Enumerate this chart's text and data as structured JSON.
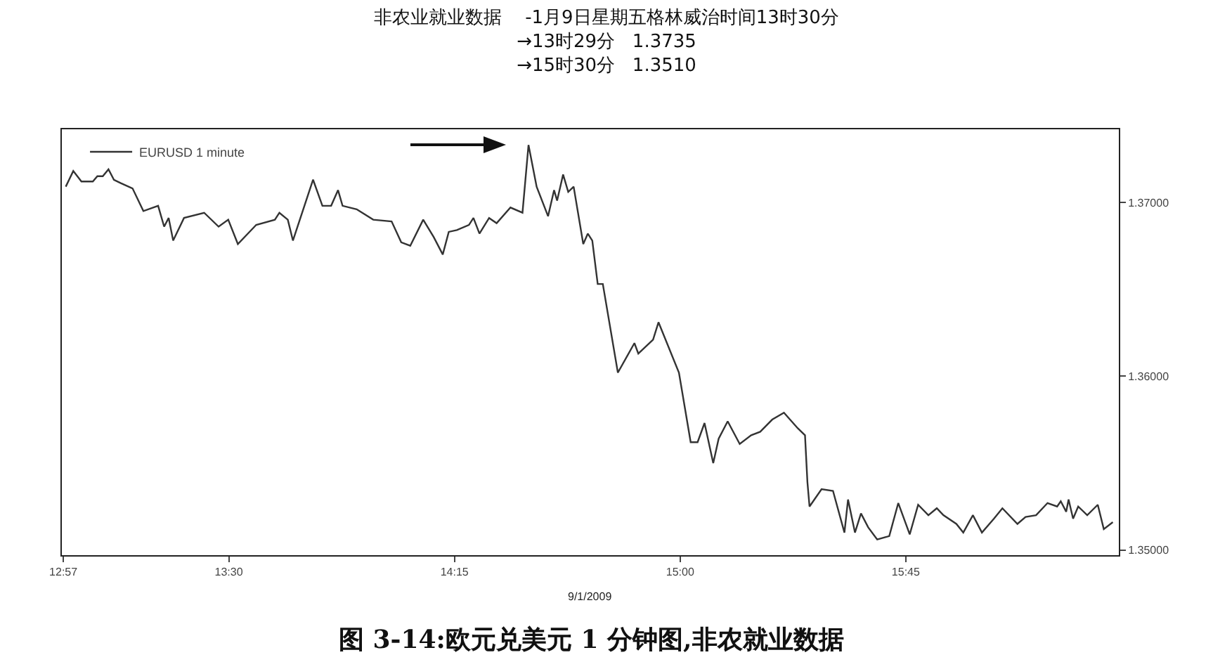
{
  "chart_data": {
    "type": "line",
    "title": "非农业就业数据    -1月9日星期五格林威治时间13时30分",
    "subtitle": "→13时29分   1.3735\n→15时30分   1.3510",
    "annotations": [
      "9/1/2009",
      "图 3-14:欧元兑美元 1 分钟图,非农就业数据"
    ],
    "series": [
      {
        "name": "EURUSD 1 minute",
        "color": "#333333",
        "x": [
          12.958,
          12.983,
          13.01,
          13.048,
          13.063,
          13.081,
          13.1,
          13.118,
          13.141,
          13.18,
          13.216,
          13.265,
          13.285,
          13.3,
          13.315,
          13.351,
          13.418,
          13.466,
          13.498,
          13.53,
          13.591,
          13.653,
          13.668,
          13.696,
          13.713,
          13.78,
          13.811,
          13.84,
          13.863,
          13.878,
          13.925,
          13.98,
          14.041,
          14.073,
          14.103,
          14.146,
          14.181,
          14.211,
          14.231,
          14.258,
          14.298,
          14.313,
          14.333,
          14.365,
          14.39,
          14.436,
          14.476,
          14.496,
          14.523,
          14.561,
          14.581,
          14.591,
          14.611,
          14.628,
          14.646,
          14.678,
          14.693,
          14.708,
          14.726,
          14.743,
          14.793,
          14.848,
          14.861,
          14.91,
          14.928,
          14.996,
          15.035,
          15.058,
          15.081,
          15.11,
          15.128,
          15.158,
          15.198,
          15.236,
          15.266,
          15.306,
          15.345,
          15.391,
          15.415,
          15.423,
          15.43,
          15.47,
          15.508,
          15.546,
          15.558,
          15.581,
          15.601,
          15.625,
          15.655,
          15.695,
          15.725,
          15.763,
          15.791,
          15.825,
          15.853,
          15.875,
          15.918,
          15.941,
          15.973,
          16.003,
          16.043,
          16.071,
          16.121,
          16.148,
          16.183,
          16.221,
          16.253,
          16.265,
          16.283,
          16.291,
          16.306,
          16.323,
          16.353,
          16.388,
          16.408,
          16.438
        ],
        "values": [
          1.3709,
          1.3718,
          1.3712,
          1.3712,
          1.3715,
          1.3715,
          1.3719,
          1.3713,
          1.3711,
          1.3708,
          1.3695,
          1.3698,
          1.3686,
          1.3691,
          1.3678,
          1.3691,
          1.3694,
          1.3686,
          1.369,
          1.3676,
          1.3687,
          1.369,
          1.3694,
          1.369,
          1.3678,
          1.3713,
          1.3698,
          1.3698,
          1.3707,
          1.3698,
          1.3696,
          1.369,
          1.3689,
          1.3677,
          1.3675,
          1.369,
          1.368,
          1.367,
          1.3683,
          1.3684,
          1.3687,
          1.3691,
          1.3682,
          1.3691,
          1.3688,
          1.3697,
          1.3694,
          1.3733,
          1.3709,
          1.3692,
          1.3707,
          1.3701,
          1.3716,
          1.3706,
          1.3709,
          1.3676,
          1.3682,
          1.3678,
          1.3653,
          1.3653,
          1.3602,
          1.3619,
          1.3613,
          1.3621,
          1.3631,
          1.3602,
          1.3562,
          1.3562,
          1.3573,
          1.355,
          1.3564,
          1.3574,
          1.3561,
          1.3566,
          1.3568,
          1.3575,
          1.3579,
          1.357,
          1.3566,
          1.3539,
          1.3525,
          1.3535,
          1.3534,
          1.351,
          1.3529,
          1.351,
          1.3521,
          1.3513,
          1.3506,
          1.3508,
          1.3527,
          1.3509,
          1.3526,
          1.352,
          1.3524,
          1.352,
          1.3515,
          1.351,
          1.352,
          1.351,
          1.3518,
          1.3524,
          1.3515,
          1.3519,
          1.352,
          1.3527,
          1.3525,
          1.3528,
          1.3522,
          1.3529,
          1.3518,
          1.3525,
          1.352,
          1.3526,
          1.3512,
          1.3516
        ]
      }
    ],
    "xlim": [
      12.945,
      16.458
    ],
    "xticks": [
      {
        "value": 12.95,
        "label": "12:57"
      },
      {
        "value": 13.5,
        "label": "13:30"
      },
      {
        "value": 14.25,
        "label": "14:15"
      },
      {
        "value": 15,
        "label": "15:00"
      },
      {
        "value": 15.75,
        "label": "15:45"
      }
    ],
    "ylim": [
      1.3497,
      1.3742
    ],
    "yticks": [
      {
        "value": 1.35,
        "label": "1.35000"
      },
      {
        "value": 1.36,
        "label": "1.36000"
      },
      {
        "value": 1.37,
        "label": "1.37000"
      }
    ],
    "grid": false,
    "legend": "top left",
    "marker": "none",
    "line_style": "solid"
  }
}
